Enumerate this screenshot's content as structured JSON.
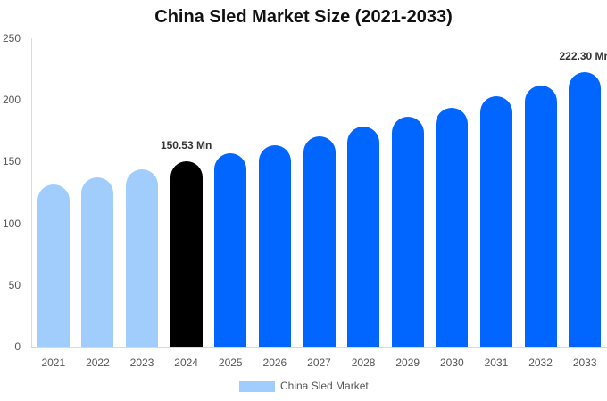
{
  "chart_data": {
    "type": "bar",
    "title": "China Sled Market Size (2021-2033)",
    "xlabel": "",
    "ylabel": "",
    "ylim": [
      0,
      250
    ],
    "yticks": [
      0,
      50,
      100,
      150,
      200,
      250
    ],
    "grid": false,
    "legend_position": "bottom",
    "categories": [
      "2021",
      "2022",
      "2023",
      "2024",
      "2025",
      "2026",
      "2027",
      "2028",
      "2029",
      "2030",
      "2031",
      "2032",
      "2033"
    ],
    "series": [
      {
        "name": "China Sled Market",
        "values": [
          131.5,
          137.0,
          144.0,
          150.53,
          157.0,
          163.0,
          170.5,
          178.5,
          186.5,
          194.0,
          203.0,
          212.0,
          222.3
        ]
      }
    ],
    "bar_colors": [
      "#a0cdfc",
      "#a0cdfc",
      "#a0cdfc",
      "#000000",
      "#0066ff",
      "#0066ff",
      "#0066ff",
      "#0066ff",
      "#0066ff",
      "#0066ff",
      "#0066ff",
      "#0066ff",
      "#0066ff"
    ],
    "annotations": [
      {
        "category": "2024",
        "text": "150.53 Mn"
      },
      {
        "category": "2033",
        "text": "222.30 Mn"
      }
    ]
  },
  "legend": {
    "label": "China Sled Market",
    "color": "#a0cdfc"
  }
}
